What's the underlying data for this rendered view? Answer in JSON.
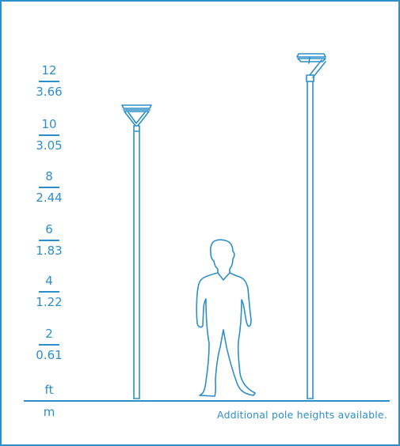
{
  "colors": {
    "accent": "#2d8fc9",
    "background": "#ffffff"
  },
  "scale": {
    "marks": [
      {
        "ft": "12",
        "m": "3.66"
      },
      {
        "ft": "10",
        "m": "3.05"
      },
      {
        "ft": "8",
        "m": "2.44"
      },
      {
        "ft": "6",
        "m": "1.83"
      },
      {
        "ft": "4",
        "m": "1.22"
      },
      {
        "ft": "2",
        "m": "0.61"
      }
    ],
    "unit_ft": "ft",
    "unit_m": "m"
  },
  "note": "Additional pole heights available.",
  "figures": {
    "fixture_left": "post-top-cone-fixture-icon",
    "fixture_right": "arm-mounted-fixture-icon",
    "person": "person-silhouette-icon"
  }
}
